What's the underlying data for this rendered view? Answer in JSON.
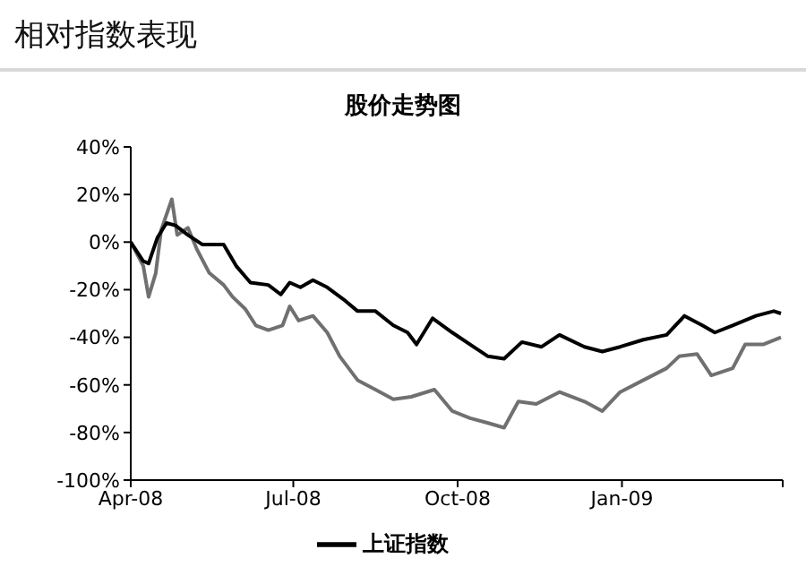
{
  "chart_data": {
    "type": "line",
    "title": "相对指数表现",
    "subtitle": "股价走势图",
    "xlim": [
      "2008-04-01",
      "2009-04-01"
    ],
    "xticks": [
      {
        "value": "2008-04-01",
        "label": "Apr-08"
      },
      {
        "value": "2008-07-01",
        "label": "Jul-08"
      },
      {
        "value": "2008-10-01",
        "label": "Oct-08"
      },
      {
        "value": "2009-01-01",
        "label": "Jan-09"
      },
      {
        "value": "2009-04-01",
        "label": null
      }
    ],
    "ylim": [
      -100,
      40
    ],
    "yticks": [
      {
        "value": -100,
        "label": "-100%"
      },
      {
        "value": -80,
        "label": "-80%"
      },
      {
        "value": -60,
        "label": "-60%"
      },
      {
        "value": -40,
        "label": "-40%"
      },
      {
        "value": -20,
        "label": "-20%"
      },
      {
        "value": 0,
        "label": "0%"
      },
      {
        "value": 20,
        "label": "20%"
      },
      {
        "value": 40,
        "label": "40%"
      }
    ],
    "legend": "bottom",
    "series": [
      {
        "color": "#707070",
        "x": [
          "2008-04-01",
          "2008-04-08",
          "2008-04-11",
          "2008-04-15",
          "2008-04-18",
          "2008-04-24",
          "2008-04-27",
          "2008-05-03",
          "2008-05-08",
          "2008-05-15",
          "2008-05-23",
          "2008-05-28",
          "2008-06-04",
          "2008-06-10",
          "2008-06-17",
          "2008-06-25",
          "2008-06-29",
          "2008-07-04",
          "2008-07-12",
          "2008-07-20",
          "2008-07-27",
          "2008-08-06",
          "2008-08-16",
          "2008-08-26",
          "2008-09-05",
          "2008-09-18",
          "2008-09-28",
          "2008-10-08",
          "2008-10-18",
          "2008-10-27",
          "2008-11-04",
          "2008-11-14",
          "2008-11-27",
          "2008-12-11",
          "2008-12-21",
          "2008-12-31",
          "2009-01-13",
          "2009-01-26",
          "2009-02-02",
          "2009-02-12",
          "2009-02-20",
          "2009-03-04",
          "2009-03-11",
          "2009-03-21",
          "2009-03-31"
        ],
        "values": [
          0,
          -10,
          -23,
          -13,
          5,
          18,
          3,
          6,
          -3,
          -13,
          -18,
          -23,
          -28,
          -35,
          -37,
          -35,
          -27,
          -33,
          -31,
          -38,
          -48,
          -58,
          -62,
          -66,
          -65,
          -62,
          -71,
          -74,
          -76,
          -78,
          -67,
          -68,
          -63,
          -67,
          -71,
          -63,
          -58,
          -53,
          -48,
          -47,
          -56,
          -53,
          -43,
          -43,
          -40
        ]
      },
      {
        "name": "上证指数",
        "color": "#000000",
        "x": [
          "2008-04-01",
          "2008-04-08",
          "2008-04-11",
          "2008-04-16",
          "2008-04-21",
          "2008-04-26",
          "2008-05-03",
          "2008-05-11",
          "2008-05-18",
          "2008-05-23",
          "2008-05-30",
          "2008-06-07",
          "2008-06-17",
          "2008-06-24",
          "2008-06-29",
          "2008-07-05",
          "2008-07-12",
          "2008-07-20",
          "2008-07-29",
          "2008-08-06",
          "2008-08-16",
          "2008-08-26",
          "2008-09-03",
          "2008-09-08",
          "2008-09-17",
          "2008-09-28",
          "2008-10-08",
          "2008-10-18",
          "2008-10-27",
          "2008-11-06",
          "2008-11-17",
          "2008-11-27",
          "2008-12-11",
          "2008-12-21",
          "2008-12-31",
          "2009-01-13",
          "2009-01-26",
          "2009-02-05",
          "2009-02-15",
          "2009-02-22",
          "2009-03-04",
          "2009-03-17",
          "2009-03-27",
          "2009-03-31"
        ],
        "values": [
          0,
          -8,
          -9,
          2,
          8,
          7,
          3,
          -1,
          -1,
          -1,
          -10,
          -17,
          -18,
          -22,
          -17,
          -19,
          -16,
          -19,
          -24,
          -29,
          -29,
          -35,
          -38,
          -43,
          -32,
          -38,
          -43,
          -48,
          -49,
          -42,
          -44,
          -39,
          -44,
          -46,
          -44,
          -41,
          -39,
          -31,
          -35,
          -38,
          -35,
          -31,
          -29,
          -30
        ]
      }
    ]
  }
}
